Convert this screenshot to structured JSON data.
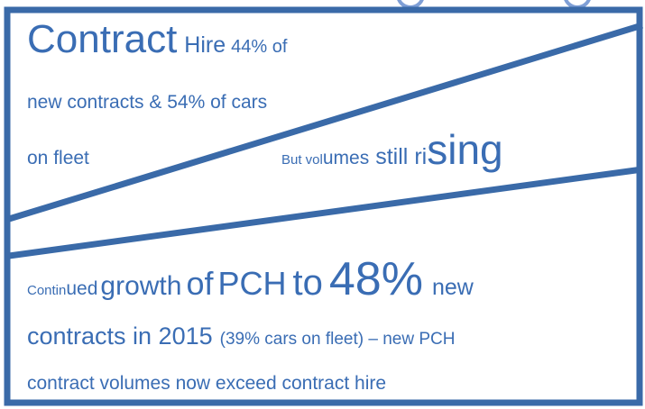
{
  "lines": [
    {
      "runs": [
        "Contract",
        "Hire",
        "44% of"
      ]
    },
    {
      "runs": [
        "new contracts & 54% of cars"
      ]
    },
    {
      "runs": [
        "on fleet"
      ]
    },
    {
      "runs": [
        "But vol",
        "umes",
        "still",
        "ri",
        "sing"
      ]
    },
    {
      "runs": [
        "Contin",
        "ued",
        "growth",
        "of",
        "PCH",
        "to",
        "48%",
        "new"
      ]
    },
    {
      "runs": [
        "contracts in 2015",
        "(39% cars on fleet) – new PCH"
      ]
    },
    {
      "runs": [
        "contract volumes now exceed contract hire"
      ]
    }
  ]
}
